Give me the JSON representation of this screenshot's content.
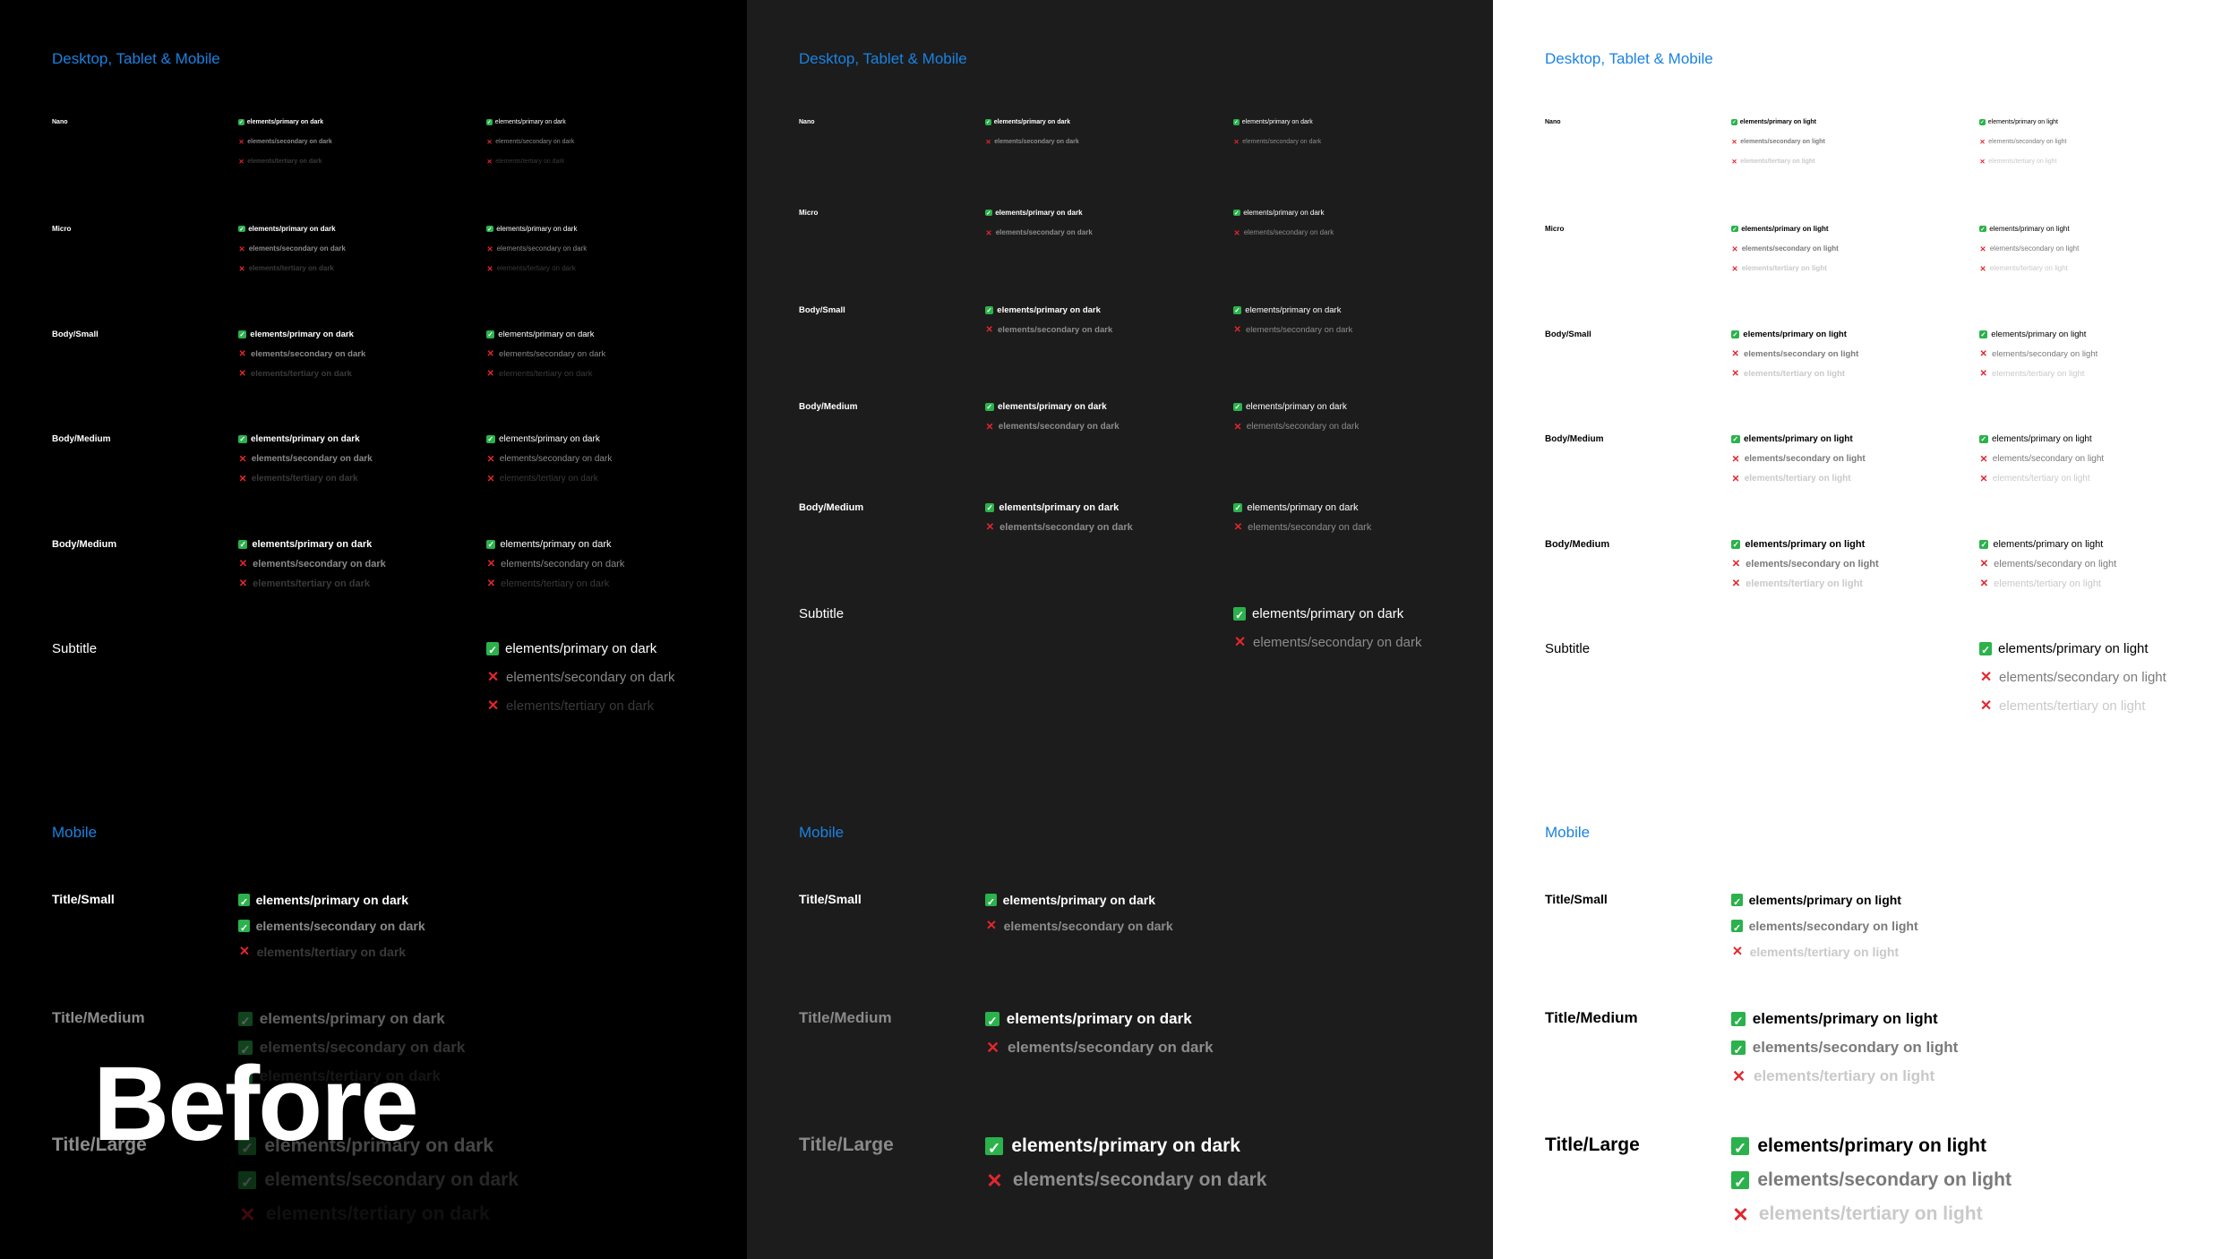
{
  "panels": [
    {
      "theme": "dark-black",
      "colors": {
        "background": "#000000",
        "label": "#ffffff",
        "primary": "#ffffff",
        "secondary": "#8a8a8a",
        "tertiary": "#3a3a3a"
      },
      "section_desktop": "Desktop, Tablet & Mobile",
      "section_mobile": "Mobile",
      "rows": [
        {
          "label": "Nano",
          "colA": [
            "elements/primary on dark",
            "elements/secondary on dark",
            "elements/tertiary on dark"
          ],
          "colB": [
            "elements/primary on dark",
            "elements/secondary on dark",
            "elements/tertiary on dark"
          ]
        },
        {
          "label": "Micro",
          "colA": [
            "elements/primary on dark",
            "elements/secondary on dark",
            "elements/tertiary on dark"
          ],
          "colB": [
            "elements/primary on dark",
            "elements/secondary on dark",
            "elements/tertiary on dark"
          ]
        },
        {
          "label": "Body/Small",
          "colA": [
            "elements/primary on dark",
            "elements/secondary on dark",
            "elements/tertiary on dark"
          ],
          "colB": [
            "elements/primary on dark",
            "elements/secondary on dark",
            "elements/tertiary on dark"
          ]
        },
        {
          "label": "Body/Medium",
          "colA": [
            "elements/primary on dark",
            "elements/secondary on dark",
            "elements/tertiary on dark"
          ],
          "colB": [
            "elements/primary on dark",
            "elements/secondary on dark",
            "elements/tertiary on dark"
          ]
        },
        {
          "label": "Body/Medium",
          "colA": [
            "elements/primary on dark",
            "elements/secondary on dark",
            "elements/tertiary on dark"
          ],
          "colB": [
            "elements/primary on dark",
            "elements/secondary on dark",
            "elements/tertiary on dark"
          ]
        },
        {
          "label": "Subtitle",
          "colB": [
            "elements/primary on dark",
            "elements/secondary on dark",
            "elements/tertiary on dark"
          ]
        }
      ],
      "mobile_rows": [
        {
          "label": "Title/Small",
          "colA": [
            "elements/primary on dark",
            "elements/secondary on dark",
            "elements/tertiary on dark"
          ]
        },
        {
          "label": "Title/Medium",
          "colA": [
            "elements/primary on dark",
            "elements/secondary on dark",
            "elements/tertiary on dark"
          ]
        },
        {
          "label": "Title/Large",
          "colA": [
            "elements/primary on dark",
            "elements/secondary on dark",
            "elements/tertiary on dark"
          ]
        }
      ],
      "overlay_text": "Before"
    },
    {
      "theme": "dark-gray",
      "colors": {
        "background": "#1c1c1c",
        "label": "#ffffff",
        "primary": "#ffffff",
        "secondary": "#8c8c8c"
      },
      "section_desktop": "Desktop, Tablet & Mobile",
      "section_mobile": "Mobile",
      "rows": [
        {
          "label": "Nano",
          "colA": [
            "elements/primary on dark",
            "elements/secondary on dark"
          ],
          "colB": [
            "elements/primary on dark",
            "elements/secondary on dark"
          ]
        },
        {
          "label": "Micro",
          "colA": [
            "elements/primary on dark",
            "elements/secondary on dark"
          ],
          "colB": [
            "elements/primary on dark",
            "elements/secondary on dark"
          ]
        },
        {
          "label": "Body/Small",
          "colA": [
            "elements/primary on dark",
            "elements/secondary on dark"
          ],
          "colB": [
            "elements/primary on dark",
            "elements/secondary on dark"
          ]
        },
        {
          "label": "Body/Medium",
          "colA": [
            "elements/primary on dark",
            "elements/secondary on dark"
          ],
          "colB": [
            "elements/primary on dark",
            "elements/secondary on dark"
          ]
        },
        {
          "label": "Body/Medium",
          "colA": [
            "elements/primary on dark",
            "elements/secondary on dark"
          ],
          "colB": [
            "elements/primary on dark",
            "elements/secondary on dark"
          ]
        },
        {
          "label": "Subtitle",
          "colB": [
            "elements/primary on dark",
            "elements/secondary on dark"
          ]
        }
      ],
      "mobile_rows": [
        {
          "label": "Title/Small",
          "colA": [
            "elements/primary on dark",
            "elements/secondary on dark"
          ]
        },
        {
          "label": "Title/Medium",
          "colA": [
            "elements/primary on dark",
            "elements/secondary on dark"
          ]
        },
        {
          "label": "Title/Large",
          "colA": [
            "elements/primary on dark",
            "elements/secondary on dark"
          ]
        }
      ]
    },
    {
      "theme": "light",
      "colors": {
        "background": "#ffffff",
        "label": "#000000",
        "primary": "#000000",
        "secondary": "#7a7a7a",
        "tertiary": "#c9c9c9"
      },
      "section_desktop": "Desktop, Tablet & Mobile",
      "section_mobile": "Mobile",
      "rows": [
        {
          "label": "Nano",
          "colA": [
            "elements/primary on light",
            "elements/secondary on light",
            "elements/tertiary on light"
          ],
          "colB": [
            "elements/primary on light",
            "elements/secondary on light",
            "elements/tertiary on light"
          ]
        },
        {
          "label": "Micro",
          "colA": [
            "elements/primary on light",
            "elements/secondary on light",
            "elements/tertiary on light"
          ],
          "colB": [
            "elements/primary on light",
            "elements/secondary on light",
            "elements/tertiary on light"
          ]
        },
        {
          "label": "Body/Small",
          "colA": [
            "elements/primary on light",
            "elements/secondary on light",
            "elements/tertiary on light"
          ],
          "colB": [
            "elements/primary on light",
            "elements/secondary on light",
            "elements/tertiary on light"
          ]
        },
        {
          "label": "Body/Medium",
          "colA": [
            "elements/primary on light",
            "elements/secondary on light",
            "elements/tertiary on light"
          ],
          "colB": [
            "elements/primary on light",
            "elements/secondary on light",
            "elements/tertiary on light"
          ]
        },
        {
          "label": "Body/Medium",
          "colA": [
            "elements/primary on light",
            "elements/secondary on light",
            "elements/tertiary on light"
          ],
          "colB": [
            "elements/primary on light",
            "elements/secondary on light",
            "elements/tertiary on light"
          ]
        },
        {
          "label": "Subtitle",
          "colB": [
            "elements/primary on light",
            "elements/secondary on light",
            "elements/tertiary on light"
          ]
        }
      ],
      "mobile_rows": [
        {
          "label": "Title/Small",
          "colA": [
            "elements/primary on light",
            "elements/secondary on light",
            "elements/tertiary on light"
          ]
        },
        {
          "label": "Title/Medium",
          "colA": [
            "elements/primary on light",
            "elements/secondary on light",
            "elements/tertiary on light"
          ]
        },
        {
          "label": "Title/Large",
          "colA": [
            "elements/primary on light",
            "elements/secondary on light",
            "elements/tertiary on light"
          ]
        }
      ]
    }
  ]
}
